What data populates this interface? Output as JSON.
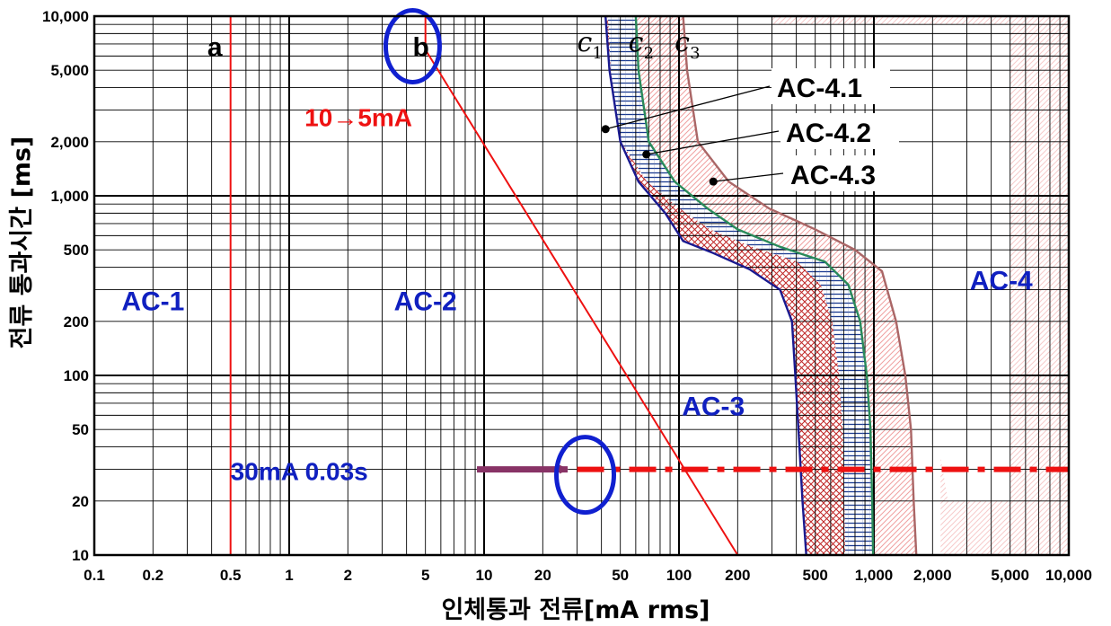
{
  "chart_data": {
    "type": "line",
    "x_scale": "log",
    "y_scale": "log",
    "xlim": [
      0.1,
      10000
    ],
    "ylim": [
      10,
      10000
    ],
    "xlabel": "인체통과 전류[mA rms]",
    "ylabel": "전류 통과시간 [ms]",
    "x_ticks": [
      {
        "value": 0.1,
        "label": "0.1"
      },
      {
        "value": 0.2,
        "label": "0.2"
      },
      {
        "value": 0.5,
        "label": "0.5"
      },
      {
        "value": 1,
        "label": "1"
      },
      {
        "value": 2,
        "label": "2"
      },
      {
        "value": 5,
        "label": "5"
      },
      {
        "value": 10,
        "label": "10"
      },
      {
        "value": 20,
        "label": "20"
      },
      {
        "value": 50,
        "label": "50"
      },
      {
        "value": 100,
        "label": "100"
      },
      {
        "value": 200,
        "label": "200"
      },
      {
        "value": 500,
        "label": "500"
      },
      {
        "value": 1000,
        "label": "1,000"
      },
      {
        "value": 2000,
        "label": "2,000"
      },
      {
        "value": 5000,
        "label": "5,000"
      },
      {
        "value": 10000,
        "label": "10,000"
      }
    ],
    "y_ticks": [
      {
        "value": 10,
        "label": "10"
      },
      {
        "value": 20,
        "label": "20"
      },
      {
        "value": 50,
        "label": "50"
      },
      {
        "value": 100,
        "label": "100"
      },
      {
        "value": 200,
        "label": "200"
      },
      {
        "value": 500,
        "label": "500"
      },
      {
        "value": 1000,
        "label": "1,000"
      },
      {
        "value": 2000,
        "label": "2,000"
      },
      {
        "value": 5000,
        "label": "5,000"
      },
      {
        "value": 10000,
        "label": "10,000"
      }
    ],
    "grid": true,
    "boundaries": [
      {
        "id": "a",
        "label": "a",
        "color": "#ee1111",
        "points": [
          [
            0.5,
            10
          ],
          [
            0.5,
            10000
          ]
        ]
      },
      {
        "id": "b",
        "label": "b",
        "color": "#ee1111",
        "points": [
          [
            5,
            10000
          ],
          [
            5,
            6500
          ],
          [
            200,
            10
          ]
        ]
      },
      {
        "id": "c1",
        "label": "c",
        "sub": "1",
        "color": "#1a1a90",
        "points": [
          [
            42,
            10000
          ],
          [
            44,
            5000
          ],
          [
            50,
            2000
          ],
          [
            62,
            1200
          ],
          [
            85,
            800
          ],
          [
            105,
            560
          ],
          [
            150,
            480
          ],
          [
            230,
            390
          ],
          [
            330,
            300
          ],
          [
            380,
            200
          ],
          [
            395,
            100
          ],
          [
            410,
            50
          ],
          [
            430,
            20
          ],
          [
            450,
            10
          ]
        ]
      },
      {
        "id": "c2",
        "label": "c",
        "sub": "2",
        "color": "#2a8a5a",
        "points": [
          [
            60,
            10000
          ],
          [
            62,
            5000
          ],
          [
            70,
            2000
          ],
          [
            95,
            1200
          ],
          [
            140,
            850
          ],
          [
            200,
            650
          ],
          [
            330,
            520
          ],
          [
            560,
            430
          ],
          [
            740,
            320
          ],
          [
            850,
            200
          ],
          [
            920,
            100
          ],
          [
            960,
            50
          ],
          [
            980,
            20
          ],
          [
            990,
            10
          ]
        ]
      },
      {
        "id": "c3",
        "label": "c",
        "sub": "3",
        "color": "#aa6666",
        "points": [
          [
            105,
            10000
          ],
          [
            110,
            5000
          ],
          [
            125,
            2000
          ],
          [
            180,
            1200
          ],
          [
            290,
            850
          ],
          [
            500,
            650
          ],
          [
            800,
            500
          ],
          [
            1100,
            380
          ],
          [
            1300,
            200
          ],
          [
            1450,
            100
          ],
          [
            1550,
            50
          ],
          [
            1600,
            20
          ],
          [
            1650,
            10
          ]
        ]
      }
    ],
    "regions": [
      {
        "label": "AC-1",
        "x": 0.2,
        "y": 230
      },
      {
        "label": "AC-2",
        "x": 5,
        "y": 230
      },
      {
        "label": "AC-3",
        "x": 150,
        "y": 60
      },
      {
        "label": "AC-4",
        "x": 4500,
        "y": 300
      }
    ],
    "subregions": [
      {
        "label": "AC-4.1",
        "fill": "crosshatch-red",
        "dot": [
          42,
          2350
        ]
      },
      {
        "label": "AC-4.2",
        "fill": "horizontal-blue",
        "dot": [
          68,
          1700
        ]
      },
      {
        "label": "AC-4.3",
        "fill": "hatch-pink",
        "dot": [
          150,
          1200
        ]
      }
    ],
    "annotations": [
      {
        "text": "10→5mA",
        "color": "#ee1111",
        "x": 1.2,
        "y": 2800
      },
      {
        "text": "30mA 0.03s",
        "color": "#1020c0",
        "x": 0.5,
        "y": 30
      },
      {
        "text": "",
        "type": "dash-dot-line",
        "color": "#ee1111",
        "y": 30,
        "from_x": 30,
        "to_x": 10000
      },
      {
        "text": "",
        "type": "arrow",
        "color": "#883366",
        "to_x": 28,
        "y": 30
      }
    ]
  }
}
